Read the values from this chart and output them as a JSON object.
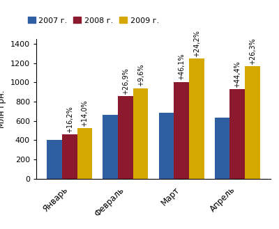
{
  "categories": [
    "Январь",
    "Февраль",
    "Март",
    "Апрель"
  ],
  "values_2007": [
    400,
    665,
    685,
    635
  ],
  "values_2008": [
    462,
    855,
    1005,
    930
  ],
  "values_2009": [
    525,
    940,
    1250,
    1165
  ],
  "color_2007": "#2E5FA3",
  "color_2008": "#8B1A2E",
  "color_2009": "#D4A800",
  "ylabel": "Млн грн.",
  "ylim": [
    0,
    1450
  ],
  "yticks": [
    0,
    200,
    400,
    600,
    800,
    1000,
    1200,
    1400
  ],
  "legend_labels": [
    "2007 г.",
    "2008 г.",
    "2009 г."
  ],
  "annotations_2008": [
    "+16,2%",
    "+26,9%",
    "+46,1%",
    "+44,4%"
  ],
  "annotations_2009": [
    "+14,0%",
    "+9,6%",
    "+24,2%",
    "+26,3%"
  ],
  "bar_width": 0.27,
  "annotation_fontsize": 7.0
}
